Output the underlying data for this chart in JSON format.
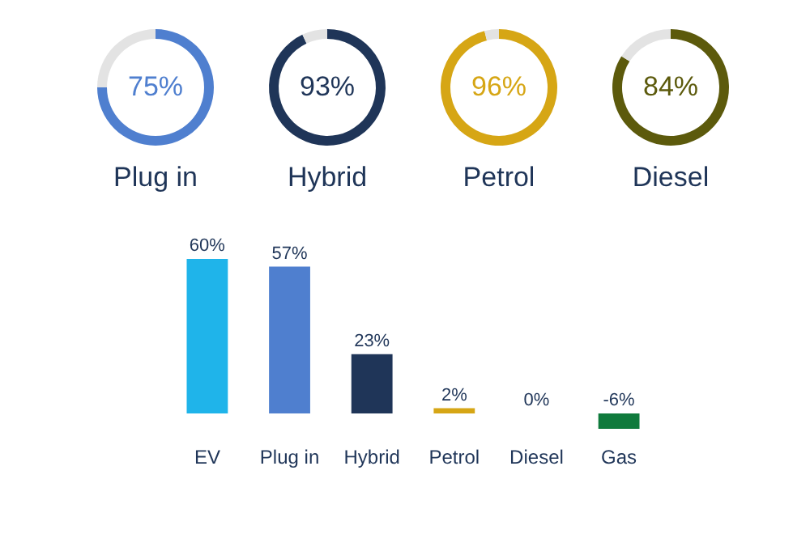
{
  "chart_data": [
    {
      "type": "donut",
      "title": "Plug in",
      "categories": [
        null,
        null
      ],
      "values": [
        75,
        25
      ],
      "colors": [
        "#4f7fcf",
        "#e3e3e3"
      ],
      "value_labels": [
        "75%",
        null
      ]
    },
    {
      "type": "donut",
      "title": "Hybrid",
      "categories": [
        null,
        null
      ],
      "values": [
        93,
        7
      ],
      "colors": [
        "#1f3558",
        "#e3e3e3"
      ],
      "value_labels": [
        "93%",
        null
      ]
    },
    {
      "type": "donut",
      "title": "Petrol",
      "categories": [
        null,
        null
      ],
      "values": [
        96,
        4
      ],
      "colors": [
        "#d6a615",
        "#e3e3e3"
      ],
      "value_labels": [
        "96%",
        null
      ]
    },
    {
      "type": "donut",
      "title": "Diesel",
      "categories": [
        null,
        null
      ],
      "values": [
        84,
        16
      ],
      "colors": [
        "#5c5a0c",
        "#e3e3e3"
      ],
      "value_labels": [
        "84%",
        null
      ]
    },
    {
      "type": "bar",
      "categories": [
        "EV",
        "Plug in",
        "Hybrid",
        "Petrol",
        "Diesel",
        "Gas"
      ],
      "values": [
        60,
        57,
        23,
        2,
        0,
        -6
      ],
      "colors": [
        "#1fb4ea",
        "#4f7fcf",
        "#1f3558",
        "#d6a615",
        "#5c5a0c",
        "#0f7a3c"
      ],
      "value_labels": [
        "60%",
        "57%",
        "23%",
        "2%",
        "0%",
        "-6%"
      ]
    }
  ]
}
